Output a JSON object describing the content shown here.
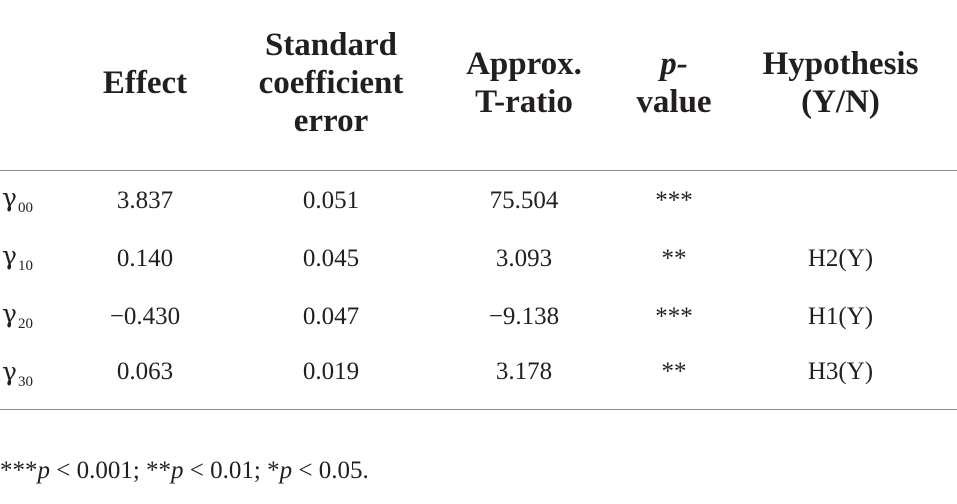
{
  "table": {
    "headers": {
      "effect": "Effect",
      "std_error": [
        "Standard",
        "coefficient",
        "error"
      ],
      "t_ratio": [
        "Approx.",
        "T-ratio"
      ],
      "p_value": [
        "p-",
        "value"
      ],
      "hypothesis": [
        "Hypothesis",
        "(Y/N)"
      ]
    },
    "rows": [
      {
        "symbol": "γ",
        "sub": "00",
        "effect": "3.837",
        "std_error": "0.051",
        "t_ratio": "75.504",
        "p_value": "***",
        "hypothesis": ""
      },
      {
        "symbol": "γ",
        "sub": "10",
        "effect": "0.140",
        "std_error": "0.045",
        "t_ratio": "3.093",
        "p_value": "**",
        "hypothesis": "H2(Y)"
      },
      {
        "symbol": "γ",
        "sub": "20",
        "effect": "−0.430",
        "std_error": "0.047",
        "t_ratio": "−9.138",
        "p_value": "***",
        "hypothesis": "H1(Y)"
      },
      {
        "symbol": "γ",
        "sub": "30",
        "effect": "0.063",
        "std_error": "0.019",
        "t_ratio": "3.178",
        "p_value": "**",
        "hypothesis": "H3(Y)"
      }
    ]
  },
  "footnote": {
    "parts": [
      {
        "text": "***",
        "italic": false
      },
      {
        "text": "p",
        "italic": true
      },
      {
        "text": " < 0.001; **",
        "italic": false
      },
      {
        "text": "p",
        "italic": true
      },
      {
        "text": " < 0.01; *",
        "italic": false
      },
      {
        "text": "p",
        "italic": true
      },
      {
        "text": " < 0.05.",
        "italic": false
      }
    ]
  }
}
